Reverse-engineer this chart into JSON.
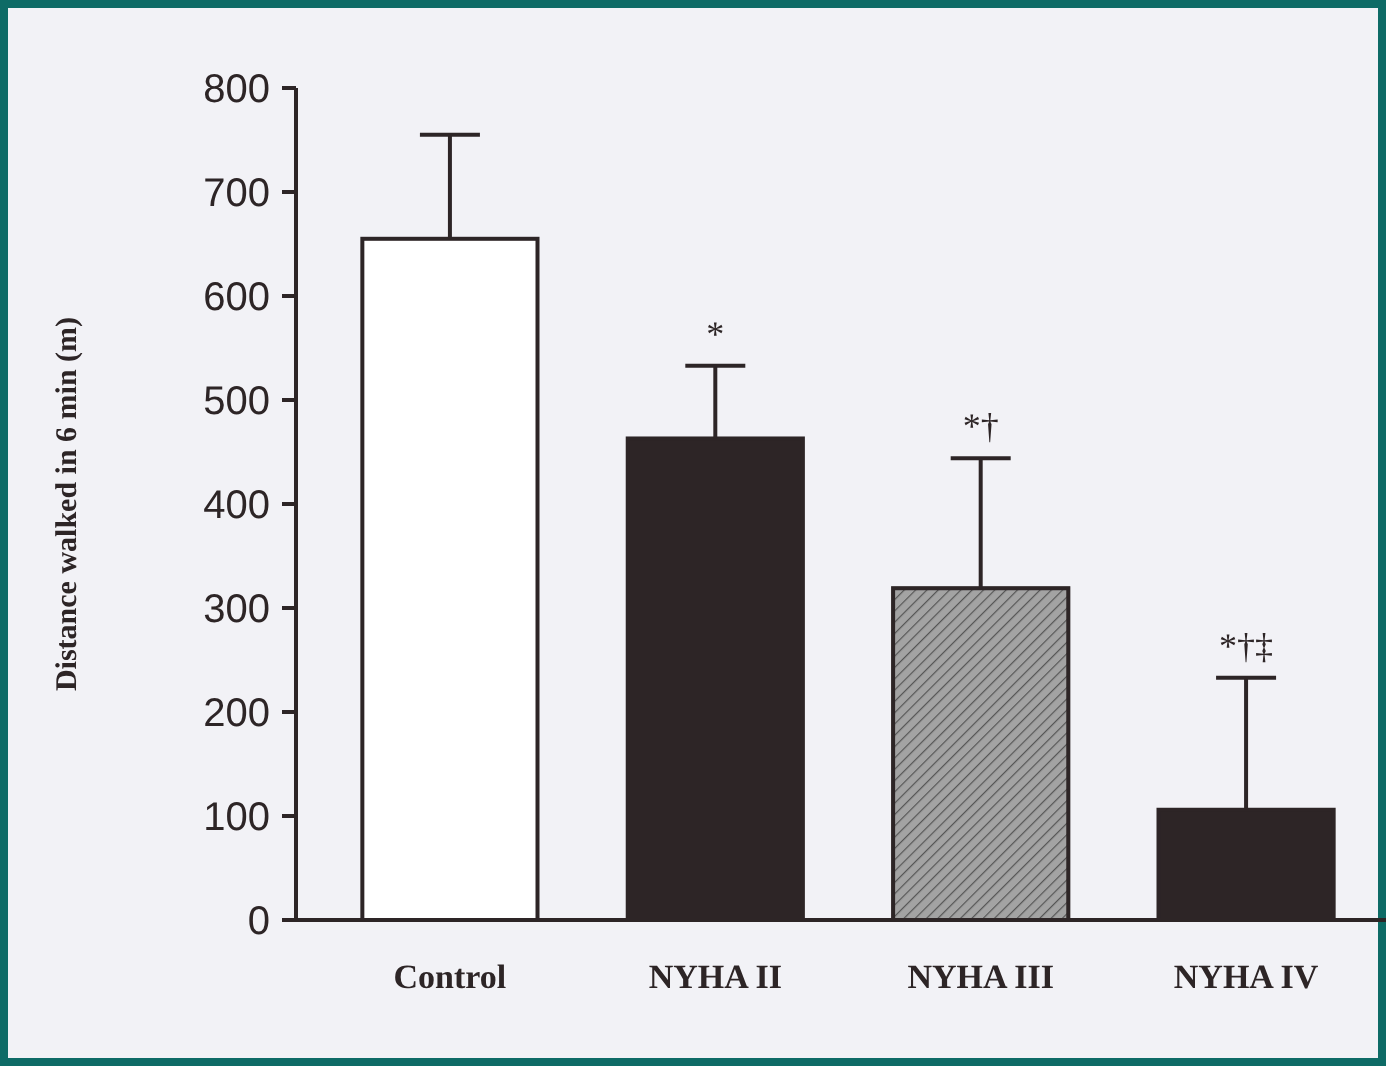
{
  "chart_data": {
    "type": "bar",
    "ylabel": "Distance walked in 6 min (m)",
    "categories": [
      "Control",
      "NYHA II",
      "NYHA III",
      "NYHA IV"
    ],
    "values": [
      655,
      463,
      319,
      106
    ],
    "colors": [
      "#ffffff",
      "#2d2526",
      "#a3a3a3",
      "#2d2526"
    ],
    "errors": [
      [
        655,
        755
      ],
      [
        463,
        533
      ],
      [
        319,
        444
      ],
      [
        106,
        233
      ]
    ],
    "ylim": [
      0,
      800
    ],
    "yticks": [
      0,
      100,
      200,
      300,
      400,
      500,
      600,
      700,
      800
    ],
    "grid": false,
    "annotations": [
      {
        "text": "*",
        "x": "NYHA II",
        "y": 533
      },
      {
        "text": "*†",
        "x": "NYHA III",
        "y": 444
      },
      {
        "text": "*†‡",
        "x": "NYHA IV",
        "y": 233
      }
    ]
  }
}
